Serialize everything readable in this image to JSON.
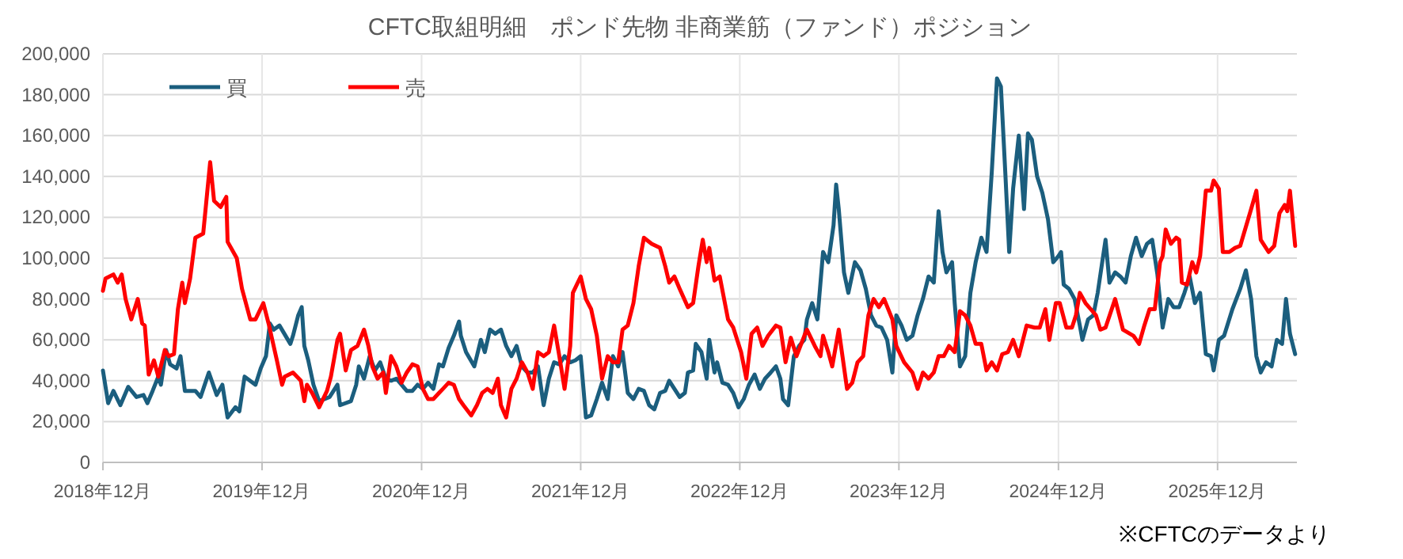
{
  "chart_data": {
    "type": "line",
    "title": "CFTC取組明細　ポンド先物  非商業筋（ファンド）ポジション",
    "annotations": [
      "※CFTCのデータより"
    ],
    "xlim": [
      "2018-12-01",
      "2026-06-01"
    ],
    "xticks": [
      {
        "value": "2018-12",
        "label": "2018年12月"
      },
      {
        "value": "2019-12",
        "label": "2019年12月"
      },
      {
        "value": "2020-12",
        "label": "2020年12月"
      },
      {
        "value": "2021-12",
        "label": "2021年12月"
      },
      {
        "value": "2022-12",
        "label": "2022年12月"
      },
      {
        "value": "2023-12",
        "label": "2023年12月"
      },
      {
        "value": "2024-12",
        "label": "2024年12月"
      },
      {
        "value": "2025-12",
        "label": "2025年12月"
      }
    ],
    "ylim": [
      0,
      200000
    ],
    "yticks": [
      {
        "value": 0,
        "label": "0"
      },
      {
        "value": 20000,
        "label": "20,000"
      },
      {
        "value": 40000,
        "label": "40,000"
      },
      {
        "value": 60000,
        "label": "60,000"
      },
      {
        "value": 80000,
        "label": "80,000"
      },
      {
        "value": 100000,
        "label": "100,000"
      },
      {
        "value": 120000,
        "label": "120,000"
      },
      {
        "value": 140000,
        "label": "140,000"
      },
      {
        "value": 160000,
        "label": "160,000"
      },
      {
        "value": 180000,
        "label": "180,000"
      },
      {
        "value": 200000,
        "label": "200,000"
      }
    ],
    "grid": true,
    "legend": "top left",
    "line_style": "solid",
    "marker": "none",
    "series": [
      {
        "name": "買",
        "color": "#1b5e7e",
        "x": [
          "2018-12-01",
          "2018-12-13",
          "2018-12-25",
          "2019-01-10",
          "2019-01-28",
          "2019-02-16",
          "2019-03-04",
          "2019-03-13",
          "2019-03-25",
          "2019-04-07",
          "2019-04-13",
          "2019-04-25",
          "2019-05-04",
          "2019-05-19",
          "2019-05-28",
          "2019-06-07",
          "2019-07-01",
          "2019-07-13",
          "2019-08-01",
          "2019-08-19",
          "2019-09-01",
          "2019-09-13",
          "2019-10-01",
          "2019-10-10",
          "2019-10-22",
          "2019-11-16",
          "2019-11-28",
          "2019-12-10",
          "2019-12-19",
          "2019-12-28",
          "2020-01-10",
          "2020-02-04",
          "2020-02-10",
          "2020-02-22",
          "2020-03-01",
          "2020-03-07",
          "2020-03-16",
          "2020-03-28",
          "2020-04-10",
          "2020-05-04",
          "2020-05-22",
          "2020-05-28",
          "2020-06-22",
          "2020-07-04",
          "2020-07-10",
          "2020-07-22",
          "2020-08-04",
          "2020-08-16",
          "2020-08-28",
          "2020-09-10",
          "2020-09-22",
          "2020-10-04",
          "2020-10-16",
          "2020-10-28",
          "2020-11-10",
          "2020-11-22",
          "2020-12-04",
          "2020-12-16",
          "2020-12-28",
          "2021-01-10",
          "2021-01-19",
          "2021-02-01",
          "2021-02-13",
          "2021-02-25",
          "2021-03-01",
          "2021-03-13",
          "2021-04-01",
          "2021-04-16",
          "2021-04-25",
          "2021-05-07",
          "2021-05-19",
          "2021-06-01",
          "2021-06-13",
          "2021-06-25",
          "2021-07-07",
          "2021-07-19",
          "2021-08-01",
          "2021-08-13",
          "2021-08-25",
          "2021-09-07",
          "2021-09-19",
          "2021-10-01",
          "2021-10-13",
          "2021-10-25",
          "2021-11-07",
          "2021-11-19",
          "2021-12-01",
          "2021-12-13",
          "2021-12-25",
          "2022-01-07",
          "2022-01-19",
          "2022-02-01",
          "2022-02-13",
          "2022-02-25",
          "2022-03-07",
          "2022-03-19",
          "2022-04-01",
          "2022-04-13",
          "2022-04-25",
          "2022-05-07",
          "2022-05-19",
          "2022-06-01",
          "2022-06-13",
          "2022-06-22",
          "2022-07-04",
          "2022-07-16",
          "2022-07-28",
          "2022-08-04",
          "2022-08-16",
          "2022-08-22",
          "2022-09-04",
          "2022-09-16",
          "2022-09-22",
          "2022-10-04",
          "2022-10-10",
          "2022-10-22",
          "2022-11-04",
          "2022-11-16",
          "2022-11-28",
          "2022-12-10",
          "2022-12-22",
          "2023-01-04",
          "2023-01-16",
          "2023-01-28",
          "2023-02-10",
          "2023-02-22",
          "2023-03-04",
          "2023-03-10",
          "2023-03-22",
          "2023-04-04",
          "2023-04-16",
          "2023-04-28",
          "2023-05-04",
          "2023-05-16",
          "2023-05-28",
          "2023-06-10",
          "2023-06-22",
          "2023-07-04",
          "2023-07-10",
          "2023-07-16",
          "2023-07-28",
          "2023-08-07",
          "2023-08-22",
          "2023-09-04",
          "2023-09-16",
          "2023-09-28",
          "2023-10-10",
          "2023-10-22",
          "2023-11-04",
          "2023-11-16",
          "2023-11-25",
          "2023-12-07",
          "2023-12-19",
          "2024-01-01",
          "2024-01-13",
          "2024-01-25",
          "2024-02-07",
          "2024-02-19",
          "2024-03-01",
          "2024-03-10",
          "2024-03-19",
          "2024-04-01",
          "2024-04-07",
          "2024-04-19",
          "2024-05-01",
          "2024-05-13",
          "2024-05-25",
          "2024-06-07",
          "2024-06-19",
          "2024-07-01",
          "2024-07-13",
          "2024-07-22",
          "2024-08-01",
          "2024-08-10",
          "2024-08-19",
          "2024-09-01",
          "2024-09-13",
          "2024-09-22",
          "2024-10-01",
          "2024-10-13",
          "2024-10-25",
          "2024-11-07",
          "2024-11-19",
          "2024-12-01",
          "2024-12-07",
          "2024-12-13",
          "2024-12-25",
          "2025-01-07",
          "2025-01-19",
          "2025-01-25",
          "2025-02-07",
          "2025-02-19",
          "2025-03-01",
          "2025-03-10",
          "2025-03-19",
          "2025-03-28",
          "2025-04-10",
          "2025-04-22",
          "2025-05-04",
          "2025-05-16",
          "2025-05-28",
          "2025-06-10",
          "2025-06-22",
          "2025-07-04",
          "2025-07-16",
          "2025-07-28",
          "2025-08-10",
          "2025-08-22",
          "2025-09-04",
          "2025-09-16",
          "2025-09-28",
          "2025-10-10",
          "2025-10-22",
          "2025-11-04",
          "2025-11-16",
          "2025-11-22",
          "2025-12-04",
          "2025-12-16",
          "2026-01-04",
          "2026-01-22",
          "2026-02-04",
          "2026-02-16",
          "2026-02-28",
          "2026-03-10",
          "2026-03-22",
          "2026-04-04",
          "2026-04-16",
          "2026-04-28",
          "2026-05-07",
          "2026-05-16",
          "2026-05-28"
        ],
        "values": [
          45000,
          29000,
          35000,
          28000,
          37000,
          32000,
          33000,
          29000,
          35000,
          42000,
          38000,
          55000,
          48000,
          46000,
          52000,
          35000,
          35000,
          32000,
          44000,
          33000,
          38000,
          22000,
          27000,
          25000,
          42000,
          38000,
          46000,
          52000,
          68000,
          65000,
          67000,
          58000,
          62000,
          72000,
          76000,
          57000,
          50000,
          38000,
          30000,
          32000,
          38000,
          28000,
          30000,
          38000,
          47000,
          41000,
          52000,
          45000,
          49000,
          41000,
          40000,
          41000,
          38000,
          35000,
          35000,
          38000,
          36000,
          39000,
          36000,
          48000,
          47000,
          56000,
          62000,
          69000,
          62000,
          54000,
          47000,
          60000,
          54000,
          65000,
          63000,
          65000,
          57000,
          52000,
          57000,
          47000,
          44000,
          44000,
          47000,
          28000,
          41000,
          49000,
          48000,
          52000,
          49000,
          50000,
          52000,
          22000,
          23000,
          31000,
          39000,
          31000,
          52000,
          47000,
          54000,
          34000,
          31000,
          36000,
          35000,
          28000,
          26000,
          34000,
          35000,
          40000,
          36000,
          32000,
          34000,
          44000,
          45000,
          58000,
          54000,
          41000,
          60000,
          44000,
          49000,
          39000,
          38000,
          34000,
          27000,
          31000,
          38000,
          43000,
          36000,
          41000,
          44000,
          47000,
          41000,
          31000,
          28000,
          52000,
          57000,
          60000,
          70000,
          78000,
          70000,
          103000,
          98000,
          116000,
          136000,
          124000,
          93000,
          83000,
          98000,
          94000,
          85000,
          72000,
          67000,
          66000,
          60000,
          44000,
          72000,
          67000,
          60000,
          62000,
          72000,
          80000,
          91000,
          88000,
          123000,
          103000,
          93000,
          98000,
          78000,
          47000,
          52000,
          83000,
          98000,
          110000,
          103000,
          142000,
          188000,
          184000,
          142000,
          103000,
          134000,
          160000,
          124000,
          161000,
          158000,
          140000,
          132000,
          119000,
          98000,
          101000,
          103000,
          87000,
          85000,
          80000,
          67000,
          60000,
          70000,
          72000,
          83000,
          96000,
          109000,
          88000,
          93000,
          91000,
          88000,
          101000,
          110000,
          101000,
          107000,
          109000,
          92000,
          66000,
          80000,
          76000,
          76000,
          83000,
          91000,
          78000,
          83000,
          53000,
          52000,
          45000,
          60000,
          62000,
          75000,
          85000,
          94000,
          80000,
          52000,
          44000,
          49000,
          47000,
          60000,
          58000,
          80000,
          63000,
          53000
        ]
      },
      {
        "name": "売",
        "color": "#ff0000",
        "x": [
          "2018-12-01",
          "2018-12-07",
          "2018-12-25",
          "2019-01-04",
          "2019-01-13",
          "2019-01-22",
          "2019-02-04",
          "2019-02-19",
          "2019-03-01",
          "2019-03-07",
          "2019-03-16",
          "2019-03-28",
          "2019-04-07",
          "2019-04-22",
          "2019-05-01",
          "2019-05-13",
          "2019-05-22",
          "2019-06-01",
          "2019-06-07",
          "2019-06-19",
          "2019-07-01",
          "2019-07-19",
          "2019-08-04",
          "2019-08-13",
          "2019-08-28",
          "2019-09-10",
          "2019-09-13",
          "2019-10-04",
          "2019-10-16",
          "2019-11-04",
          "2019-11-16",
          "2019-12-04",
          "2019-12-16",
          "2020-01-04",
          "2020-01-16",
          "2020-01-22",
          "2020-02-10",
          "2020-02-28",
          "2020-03-07",
          "2020-03-13",
          "2020-03-25",
          "2020-04-10",
          "2020-04-28",
          "2020-05-07",
          "2020-05-22",
          "2020-05-28",
          "2020-06-10",
          "2020-06-22",
          "2020-07-07",
          "2020-07-22",
          "2020-08-01",
          "2020-08-10",
          "2020-08-22",
          "2020-09-04",
          "2020-09-10",
          "2020-09-22",
          "2020-10-04",
          "2020-10-16",
          "2020-10-28",
          "2020-11-10",
          "2020-11-22",
          "2020-12-04",
          "2020-12-16",
          "2020-12-28",
          "2021-01-10",
          "2021-01-19",
          "2021-02-01",
          "2021-02-13",
          "2021-02-25",
          "2021-03-07",
          "2021-03-25",
          "2021-04-07",
          "2021-04-19",
          "2021-05-01",
          "2021-05-13",
          "2021-05-25",
          "2021-06-01",
          "2021-06-13",
          "2021-06-25",
          "2021-07-07",
          "2021-07-19",
          "2021-08-01",
          "2021-08-13",
          "2021-08-25",
          "2021-09-07",
          "2021-09-19",
          "2021-10-01",
          "2021-10-13",
          "2021-10-25",
          "2021-11-07",
          "2021-11-13",
          "2021-12-01",
          "2021-12-13",
          "2021-12-25",
          "2022-01-07",
          "2022-01-19",
          "2022-02-01",
          "2022-02-13",
          "2022-02-25",
          "2022-03-07",
          "2022-03-19",
          "2022-04-01",
          "2022-04-13",
          "2022-04-25",
          "2022-05-13",
          "2022-06-01",
          "2022-06-13",
          "2022-06-22",
          "2022-07-04",
          "2022-07-16",
          "2022-08-04",
          "2022-08-16",
          "2022-08-28",
          "2022-09-07",
          "2022-09-16",
          "2022-09-22",
          "2022-10-04",
          "2022-10-16",
          "2022-11-04",
          "2022-11-16",
          "2022-12-04",
          "2022-12-16",
          "2022-12-28",
          "2023-01-10",
          "2023-01-22",
          "2023-02-04",
          "2023-02-22",
          "2023-03-04",
          "2023-03-16",
          "2023-03-28",
          "2023-04-10",
          "2023-04-28",
          "2023-05-04",
          "2023-05-22",
          "2023-06-04",
          "2023-06-10",
          "2023-06-22",
          "2023-07-01",
          "2023-07-16",
          "2023-08-04",
          "2023-08-16",
          "2023-08-28",
          "2023-09-10",
          "2023-09-22",
          "2023-10-04",
          "2023-10-16",
          "2023-10-28",
          "2023-11-16",
          "2023-11-25",
          "2023-12-13",
          "2024-01-01",
          "2024-01-13",
          "2024-01-25",
          "2024-02-07",
          "2024-02-19",
          "2024-03-01",
          "2024-03-13",
          "2024-03-25",
          "2024-04-07",
          "2024-04-19",
          "2024-05-01",
          "2024-05-13",
          "2024-05-25",
          "2024-06-07",
          "2024-06-19",
          "2024-07-01",
          "2024-07-13",
          "2024-07-25",
          "2024-08-07",
          "2024-08-19",
          "2024-09-01",
          "2024-09-19",
          "2024-10-07",
          "2024-10-19",
          "2024-11-01",
          "2024-11-10",
          "2024-11-25",
          "2024-12-04",
          "2024-12-19",
          "2025-01-01",
          "2025-01-10",
          "2025-01-19",
          "2025-02-01",
          "2025-02-13",
          "2025-02-25",
          "2025-03-07",
          "2025-03-19",
          "2025-04-10",
          "2025-04-28",
          "2025-05-22",
          "2025-06-04",
          "2025-06-16",
          "2025-06-28",
          "2025-07-10",
          "2025-07-22",
          "2025-07-28",
          "2025-08-04",
          "2025-08-16",
          "2025-08-28",
          "2025-09-04",
          "2025-09-10",
          "2025-09-22",
          "2025-10-04",
          "2025-10-13",
          "2025-10-22",
          "2025-11-04",
          "2025-11-16",
          "2025-11-22",
          "2025-12-04",
          "2025-12-13",
          "2025-12-28",
          "2026-01-10",
          "2026-01-22",
          "2026-02-16",
          "2026-02-28",
          "2026-03-10",
          "2026-03-28",
          "2026-04-10",
          "2026-04-22",
          "2026-05-04",
          "2026-05-10",
          "2026-05-16",
          "2026-05-28"
        ],
        "values": [
          84000,
          90000,
          92000,
          88000,
          92000,
          80000,
          70000,
          80000,
          68000,
          67000,
          43000,
          50000,
          42000,
          55000,
          52000,
          53000,
          75000,
          88000,
          78000,
          90000,
          110000,
          112000,
          147000,
          128000,
          125000,
          130000,
          108000,
          100000,
          85000,
          70000,
          70000,
          78000,
          68000,
          50000,
          38000,
          42000,
          44000,
          40000,
          30000,
          38000,
          34000,
          27000,
          35000,
          42000,
          60000,
          63000,
          45000,
          55000,
          57000,
          65000,
          57000,
          47000,
          41000,
          44000,
          34000,
          52000,
          47000,
          39000,
          44000,
          48000,
          47000,
          36000,
          31000,
          31000,
          34000,
          36000,
          39000,
          38000,
          31000,
          28000,
          23000,
          28000,
          34000,
          36000,
          34000,
          41000,
          28000,
          22000,
          36000,
          41000,
          49000,
          44000,
          36000,
          54000,
          52000,
          54000,
          67000,
          52000,
          36000,
          57000,
          83000,
          91000,
          80000,
          75000,
          62000,
          41000,
          52000,
          49000,
          49000,
          65000,
          67000,
          78000,
          96000,
          110000,
          107000,
          105000,
          96000,
          88000,
          91000,
          85000,
          76000,
          78000,
          96000,
          109000,
          98000,
          105000,
          89000,
          91000,
          70000,
          66000,
          54000,
          41000,
          63000,
          66000,
          57000,
          62000,
          67000,
          66000,
          49000,
          61000,
          52000,
          62000,
          65000,
          57000,
          52000,
          62000,
          54000,
          47000,
          65000,
          36000,
          39000,
          49000,
          52000,
          72000,
          80000,
          76000,
          80000,
          70000,
          57000,
          49000,
          44000,
          36000,
          44000,
          41000,
          44000,
          52000,
          52000,
          57000,
          54000,
          74000,
          72000,
          67000,
          58000,
          58000,
          45000,
          49000,
          45000,
          53000,
          54000,
          60000,
          52000,
          67000,
          66000,
          66000,
          75000,
          60000,
          78000,
          78000,
          66000,
          66000,
          72000,
          83000,
          78000,
          75000,
          72000,
          65000,
          66000,
          80000,
          65000,
          62000,
          58000,
          67000,
          75000,
          75000,
          98000,
          101000,
          114000,
          107000,
          110000,
          109000,
          88000,
          87000,
          98000,
          93000,
          101000,
          133000,
          133000,
          138000,
          134000,
          103000,
          103000,
          105000,
          106000,
          124000,
          133000,
          109000,
          103000,
          106000,
          122000,
          126000,
          123000,
          133000,
          106000
        ]
      }
    ]
  }
}
